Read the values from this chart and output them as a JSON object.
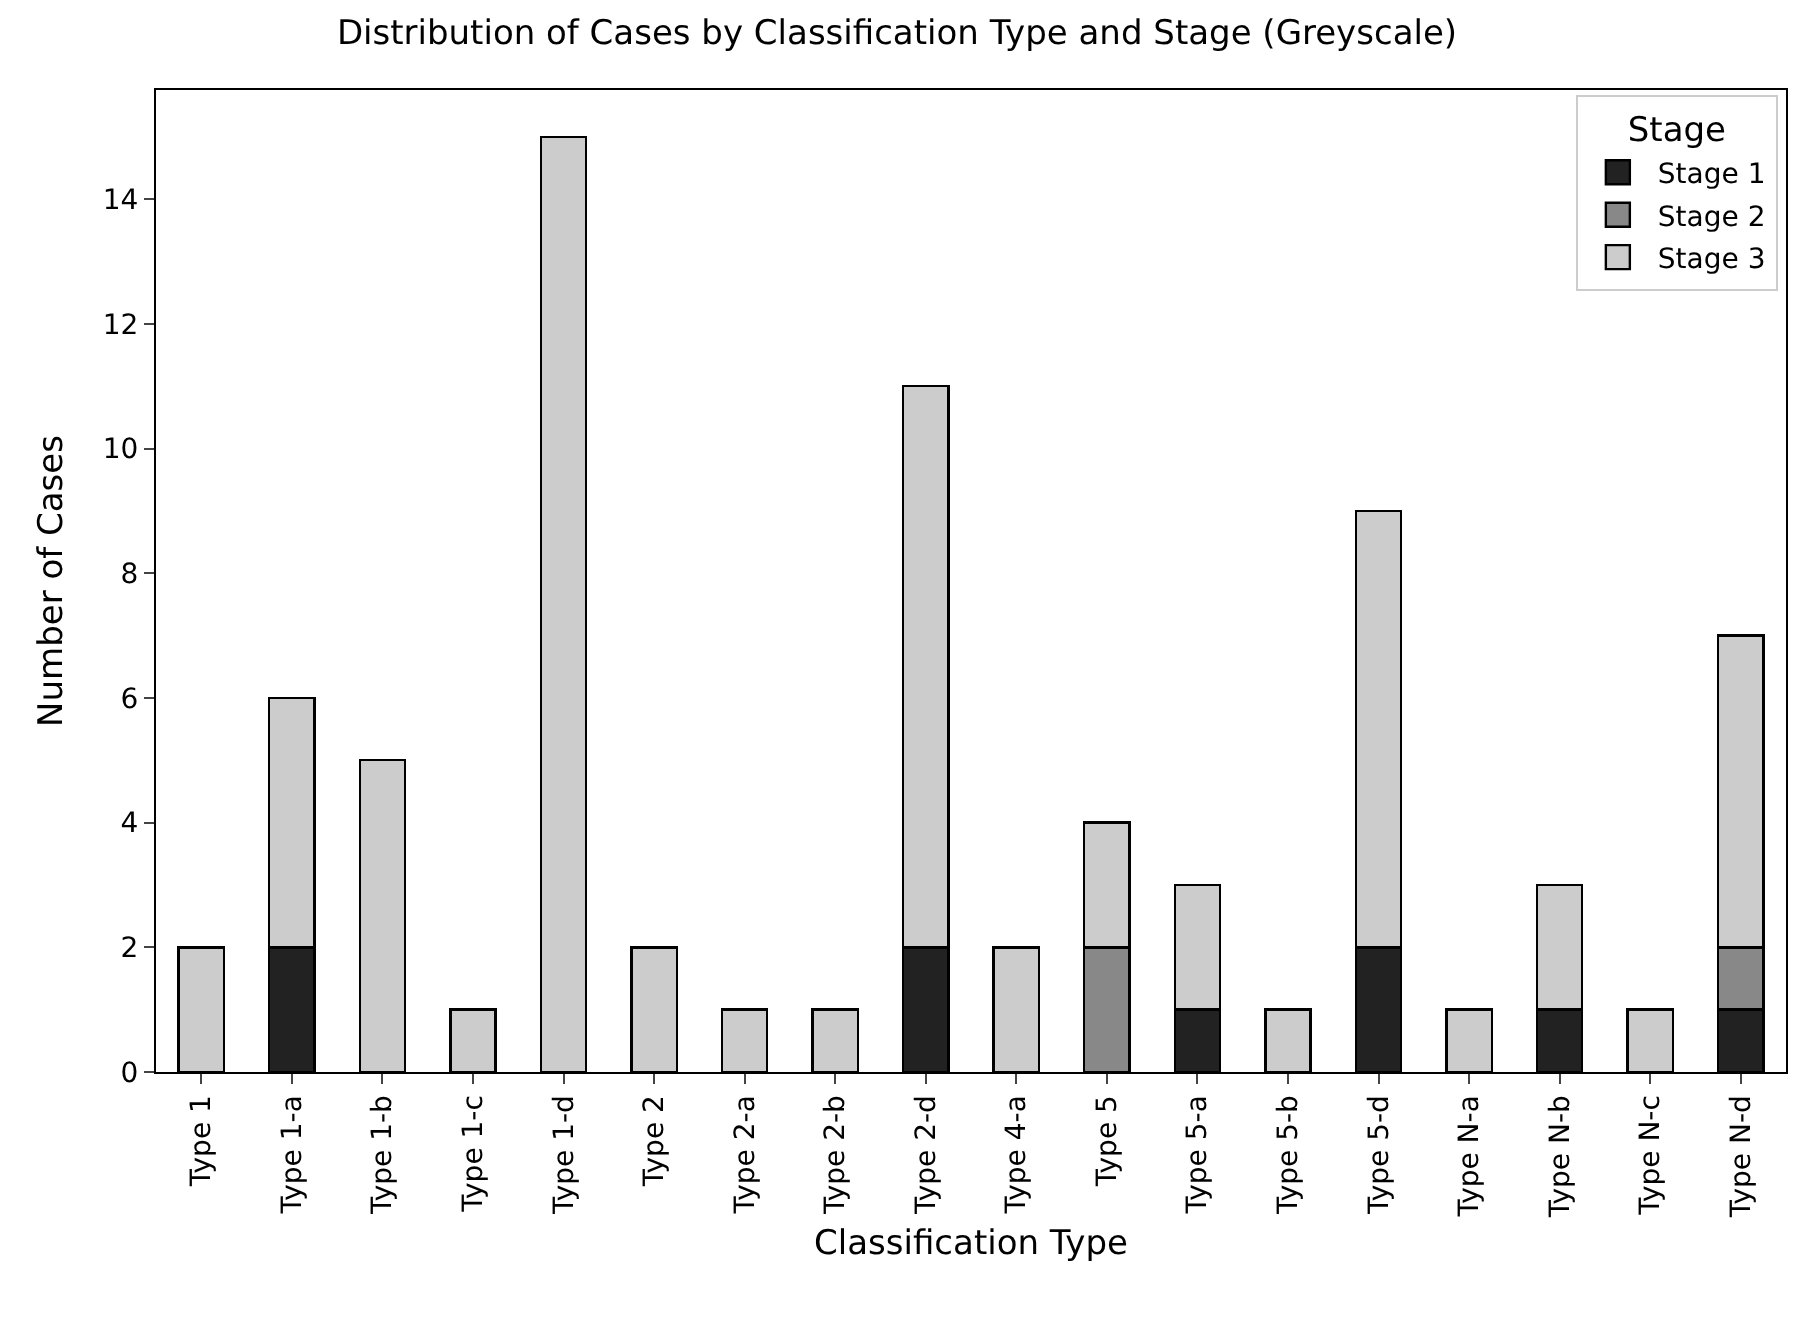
{
  "chart_data": {
    "type": "bar",
    "title": "Distribution of Cases by Classification Type and Stage (Greyscale)",
    "xlabel": "Classification Type",
    "ylabel": "Number of Cases",
    "legend_title": "Stage",
    "stacked": true,
    "categories": [
      "Type 1",
      "Type 1-a",
      "Type 1-b",
      "Type 1-c",
      "Type 1-d",
      "Type 2",
      "Type 2-a",
      "Type 2-b",
      "Type 2-d",
      "Type 4-a",
      "Type 5",
      "Type 5-a",
      "Type 5-b",
      "Type 5-d",
      "Type N-a",
      "Type N-b",
      "Type N-c",
      "Type N-d"
    ],
    "series": [
      {
        "name": "Stage 1",
        "color": "#222222",
        "values": [
          0,
          2,
          0,
          0,
          0,
          0,
          0,
          0,
          2,
          0,
          0,
          1,
          0,
          2,
          0,
          1,
          0,
          1
        ]
      },
      {
        "name": "Stage 2",
        "color": "#888888",
        "values": [
          0,
          0,
          0,
          0,
          0,
          0,
          0,
          0,
          0,
          0,
          2,
          0,
          0,
          0,
          0,
          0,
          0,
          1
        ]
      },
      {
        "name": "Stage 3",
        "color": "#cccccc",
        "values": [
          2,
          4,
          5,
          1,
          15,
          2,
          1,
          1,
          9,
          2,
          2,
          2,
          1,
          7,
          1,
          2,
          1,
          5
        ]
      }
    ],
    "ylim": [
      0,
      15.75
    ],
    "yticks": [
      0,
      2,
      4,
      6,
      8,
      10,
      12,
      14
    ],
    "legend": "top right"
  }
}
